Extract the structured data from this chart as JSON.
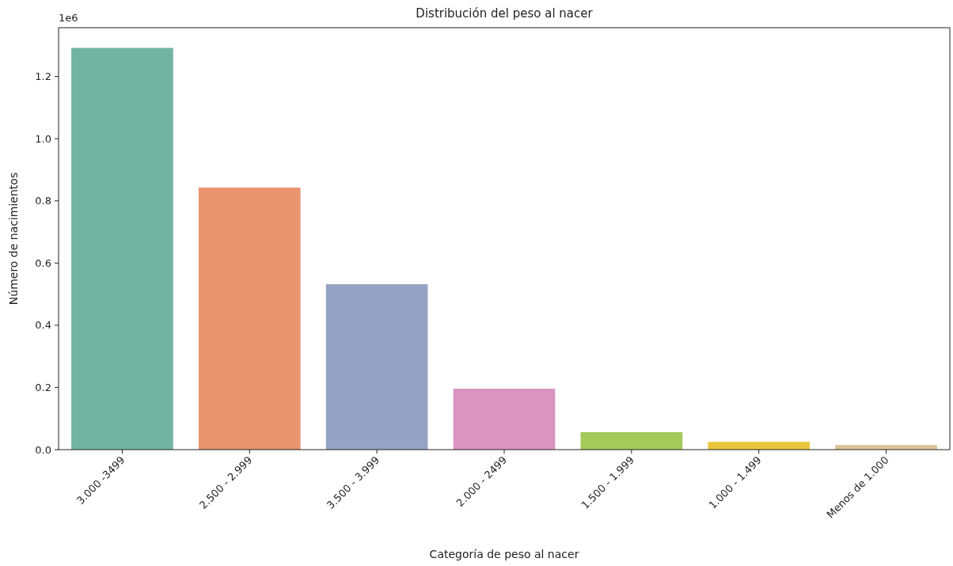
{
  "chart_data": {
    "type": "bar",
    "title": "Distribución del peso al nacer",
    "xlabel": "Categoría de peso al nacer",
    "ylabel": "Número de nacimientos",
    "annotations": [
      "1e6"
    ],
    "categories": [
      "3.000 -3499",
      "2.500 - 2.999",
      "3.500 - 3.999",
      "2.000 - 2499",
      "1.500 - 1.999",
      "1.000 - 1.499",
      "Menos de 1.000"
    ],
    "values": [
      1.292,
      0.843,
      0.532,
      0.196,
      0.056,
      0.025,
      0.015
    ],
    "colors": [
      "#72b4a0",
      "#e8956f",
      "#94a3c3",
      "#db94c0",
      "#a4c85a",
      "#e8c73e",
      "#dcc59a"
    ],
    "ylim": [
      0,
      1.357
    ],
    "yticks": [
      {
        "value": 0,
        "label": "0.0"
      },
      {
        "value": 0.2,
        "label": "0.2"
      },
      {
        "value": 0.4,
        "label": "0.4"
      },
      {
        "value": 0.6,
        "label": "0.6"
      },
      {
        "value": 0.8,
        "label": "0.8"
      },
      {
        "value": 1.0,
        "label": "1.0"
      },
      {
        "value": 1.2,
        "label": "1.2"
      }
    ],
    "grid": false
  }
}
